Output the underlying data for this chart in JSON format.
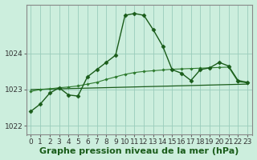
{
  "title": "Graphe pression niveau de la mer (hPa)",
  "background_color": "#cceedd",
  "grid_color": "#99ccbb",
  "line_color_dark": "#1a5c1a",
  "line_color_mid": "#2d7a2d",
  "xlim": [
    -0.5,
    23.5
  ],
  "ylim": [
    1021.75,
    1025.35
  ],
  "yticks": [
    1022,
    1023,
    1024
  ],
  "xticks": [
    0,
    1,
    2,
    3,
    4,
    5,
    6,
    7,
    8,
    9,
    10,
    11,
    12,
    13,
    14,
    15,
    16,
    17,
    18,
    19,
    20,
    21,
    22,
    23
  ],
  "series1_x": [
    0,
    1,
    2,
    3,
    4,
    5,
    6,
    7,
    8,
    9,
    10,
    11,
    12,
    13,
    14,
    15,
    16,
    17,
    18,
    19,
    20,
    21,
    22,
    23
  ],
  "series1_y": [
    1022.4,
    1022.6,
    1022.9,
    1023.05,
    1022.85,
    1022.82,
    1023.35,
    1023.55,
    1023.75,
    1023.95,
    1025.05,
    1025.1,
    1025.05,
    1024.65,
    1024.2,
    1023.55,
    1023.45,
    1023.25,
    1023.55,
    1023.6,
    1023.75,
    1023.65,
    1023.25,
    1023.2
  ],
  "series2_x": [
    0,
    1,
    2,
    3,
    4,
    5,
    6,
    7,
    8,
    9,
    10,
    11,
    12,
    13,
    14,
    15,
    16,
    17,
    18,
    19,
    20,
    21,
    22,
    23
  ],
  "series2_y": [
    1022.95,
    1023.0,
    1023.02,
    1023.05,
    1023.07,
    1023.1,
    1023.15,
    1023.2,
    1023.28,
    1023.35,
    1023.42,
    1023.47,
    1023.5,
    1023.52,
    1023.54,
    1023.56,
    1023.57,
    1023.58,
    1023.59,
    1023.6,
    1023.61,
    1023.62,
    1023.22,
    1023.18
  ],
  "series3_x": [
    0,
    23
  ],
  "series3_y": [
    1023.0,
    1023.15
  ],
  "tick_fontsize": 6.5,
  "label_fontsize": 8,
  "ylabel_fontsize": 7
}
